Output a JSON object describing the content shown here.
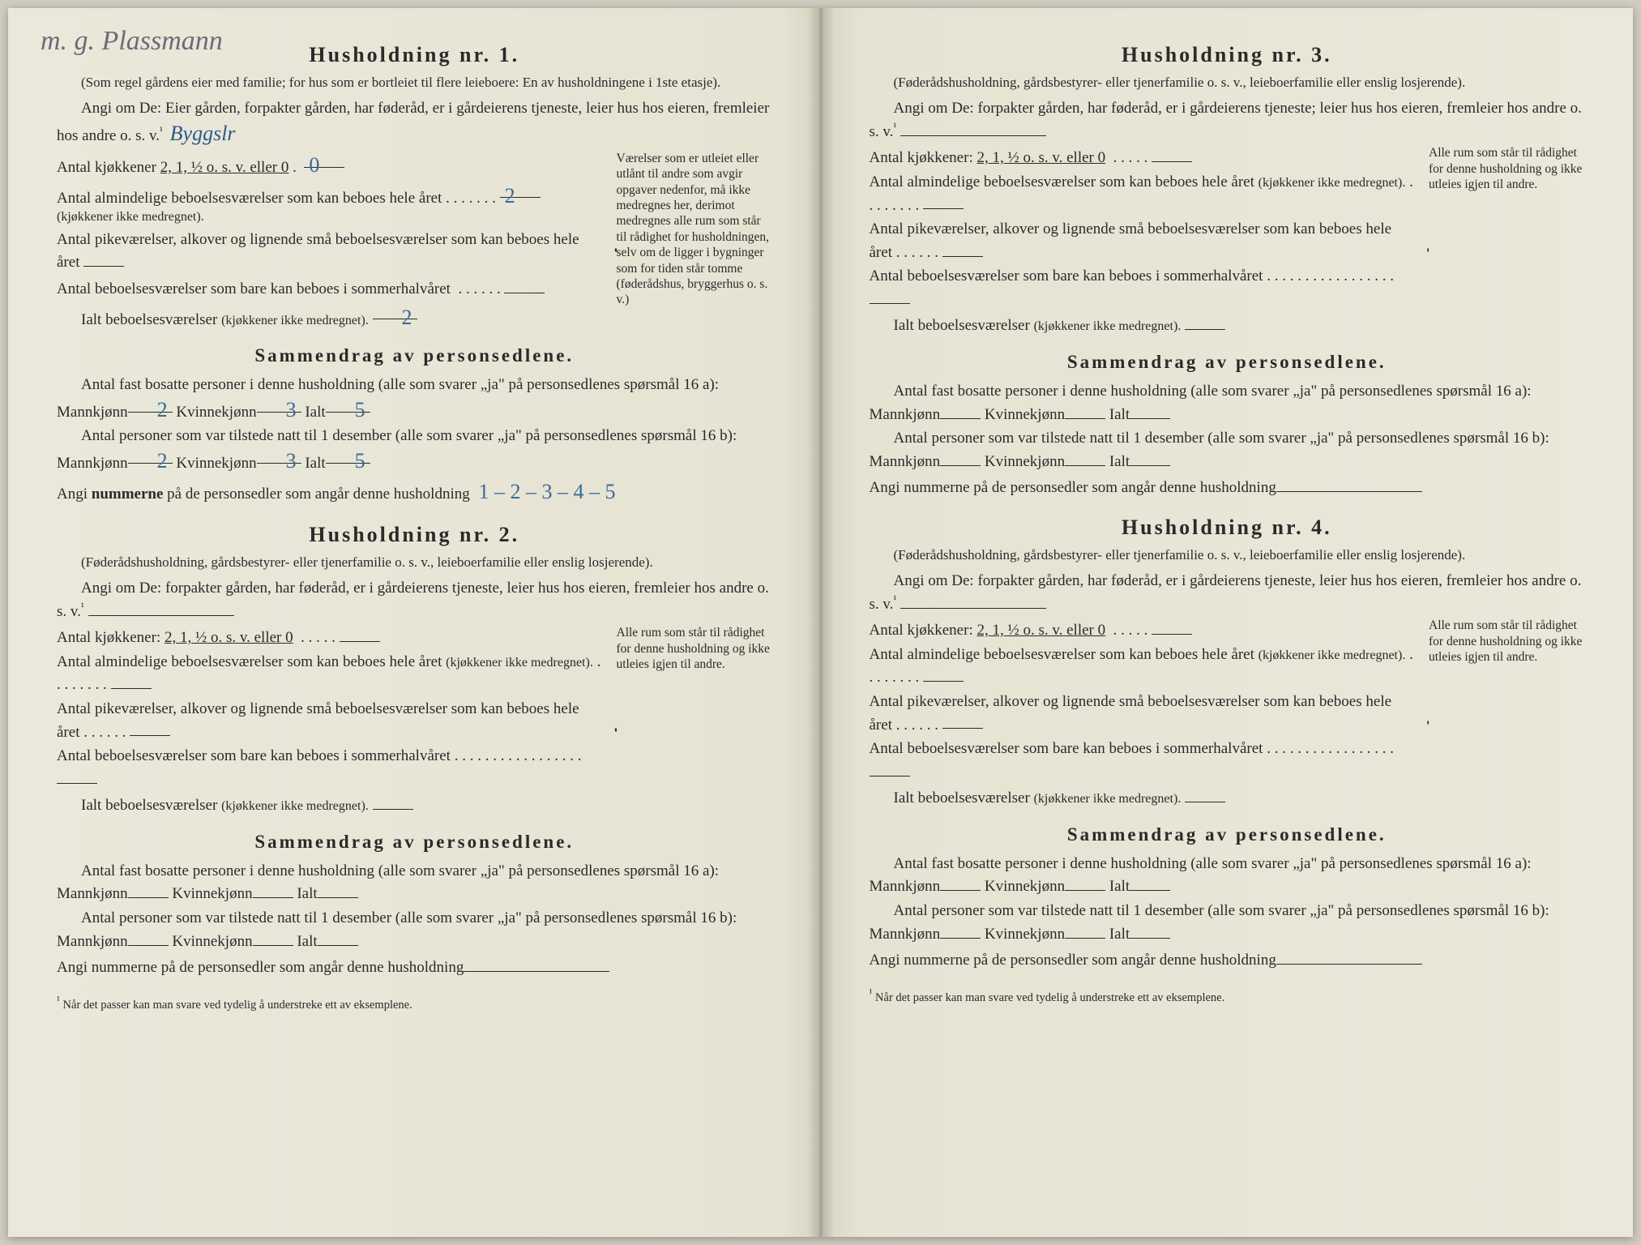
{
  "colors": {
    "paper": "#e8e6d8",
    "ink": "#2a2a2a",
    "pen": "#3a6a9a",
    "pencil": "#6b6b7a"
  },
  "handwritten_top": "m. g. Plassmann",
  "common": {
    "note_foderads": "(Føderådshusholdning, gårdsbestyrer- eller tjenerfamilie o. s. v., leieboerfamilie eller enslig losjerende).",
    "angi_prefix": "Angi om De:",
    "angi_line_sub": "forpakter gården, har føderåd, er i gårdeierens tjeneste, leier hus hos eieren, fremleier hos andre o. s. v.",
    "angi_line_main": "Eier gården, forpakter gården, har føderåd, er i gårdeierens tjeneste, leier hus hos eieren, fremleier hos andre o. s. v.",
    "kitchens_label": "Antal kjøkkener",
    "kitchens_opts": "2, 1, ½ o. s. v. eller 0",
    "rooms_year": "Antal almindelige beboelsesværelser som kan beboes hele året",
    "rooms_year_note": "(kjøkkener ikke medregnet).",
    "pike": "Antal pikeværelser, alkover og lignende små beboelsesværelser som kan beboes hele året",
    "summer": "Antal beboelsesværelser som bare kan beboes i sommerhalvåret",
    "ialt": "Ialt beboelsesværelser",
    "ialt_note": "(kjøkkener ikke medregnet).",
    "side_note_h1": "Værelser som er utleiet eller utlånt til andre som avgir opgaver nedenfor, må ikke medregnes her, derimot medregnes alle rum som står til rådighet for husholdningen, selv om de ligger i bygninger som for tiden står tomme (føderådshus, bryggerhus o. s. v.)",
    "side_note_other": "Alle rum som står til rådighet for denne husholdning og ikke utleies igjen til andre.",
    "summary_title": "Sammendrag av personsedlene.",
    "fast": "Antal fast bosatte personer i denne husholdning (alle som svarer „ja\" på personsedlenes spørsmål 16 a):",
    "tilstede": "Antal personer som var tilstede natt til 1 desember (alle som svarer „ja\" på personsedlenes spørsmål 16 b):",
    "mann": "Mannkjønn",
    "kvinne": "Kvinnekjønn",
    "ialt_p": "Ialt",
    "nummer": "Angi nummerne på de personsedler som angår denne husholdning",
    "footnote": "Når det passer kan man svare ved tydelig å understreke ett av eksemplene.",
    "footnote_marker": "¹"
  },
  "h1": {
    "title": "Husholdning nr. 1.",
    "note": "(Som regel gårdens eier med familie; for hus som er bortleiet til flere leieboere: En av husholdningene i 1ste etasje).",
    "angi_fill": "Byggslr",
    "kitchens_fill": "0",
    "rooms_fill": "2",
    "ialt_fill": "2",
    "mann_a": "2",
    "kvinne_a": "3",
    "ialt_a": "5",
    "mann_b": "2",
    "kvinne_b": "3",
    "ialt_b": "5",
    "nummer_fill": "1 – 2 – 3 – 4 – 5"
  },
  "h2": {
    "title": "Husholdning nr. 2."
  },
  "h3": {
    "title": "Husholdning nr. 3."
  },
  "h4": {
    "title": "Husholdning nr. 4."
  }
}
